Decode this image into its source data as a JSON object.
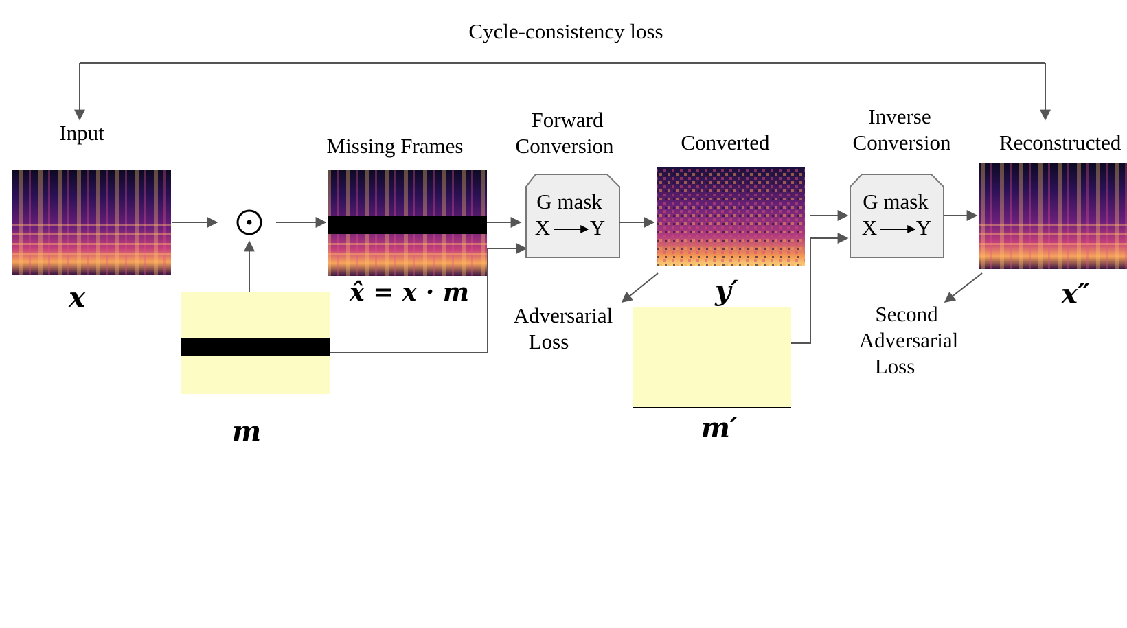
{
  "diagram": {
    "title": "Cycle-consistency loss",
    "labels": {
      "input": "Input",
      "missing_frames": "Missing Frames",
      "forward_conversion": [
        "Forward",
        "Conversion"
      ],
      "converted": "Converted",
      "inverse_conversion": [
        "Inverse",
        "Conversion"
      ],
      "reconstructed": "Reconstructed",
      "adversarial_loss": [
        "Adversarial",
        "Loss"
      ],
      "second_adversarial_loss": [
        "Second",
        "Adversarial",
        "Loss"
      ]
    },
    "symbols": {
      "x": "x",
      "m": "m",
      "x_hat_eq": "x̂ = x · m",
      "y_prime": "y′",
      "m_prime": "m′",
      "x_double_prime": "x″",
      "hadamard": "⊙"
    },
    "generators": [
      {
        "line1": "G mask",
        "from": "X",
        "to": "Y"
      },
      {
        "line1": "G mask",
        "from": "X",
        "to": "Y"
      }
    ],
    "colors": {
      "mask_fill": "#fdfcc4",
      "mask_bar": "#000000",
      "arrow": "#555555",
      "generator_fill": "#eeeeee",
      "generator_stroke": "#777777"
    }
  }
}
